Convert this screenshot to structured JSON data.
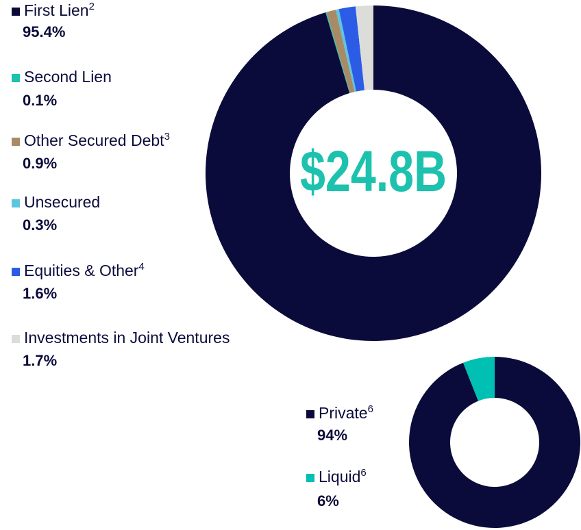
{
  "chart_data": [
    {
      "type": "donut",
      "center_label": "$24.8B",
      "categories": [
        "First Lien",
        "Second Lien",
        "Other Secured Debt",
        "Unsecured",
        "Equities & Other",
        "Investments in Joint Ventures"
      ],
      "footnotes": [
        "2",
        null,
        "3",
        null,
        "4",
        null
      ],
      "values": [
        95.4,
        0.1,
        0.9,
        0.3,
        1.6,
        1.7
      ],
      "value_labels": [
        "95.4%",
        "0.1%",
        "0.9%",
        "0.3%",
        "1.6%",
        "1.7%"
      ],
      "colors": [
        "#0b0b3b",
        "#1cc2ad",
        "#a88b66",
        "#5cc6df",
        "#2c5ce6",
        "#dcdcd8"
      ]
    },
    {
      "type": "donut",
      "categories": [
        "Private",
        "Liquid"
      ],
      "footnotes": [
        "6",
        "6"
      ],
      "values": [
        94,
        6
      ],
      "value_labels": [
        "94%",
        "6%"
      ],
      "colors": [
        "#0b0b3b",
        "#00bfb3"
      ]
    }
  ]
}
